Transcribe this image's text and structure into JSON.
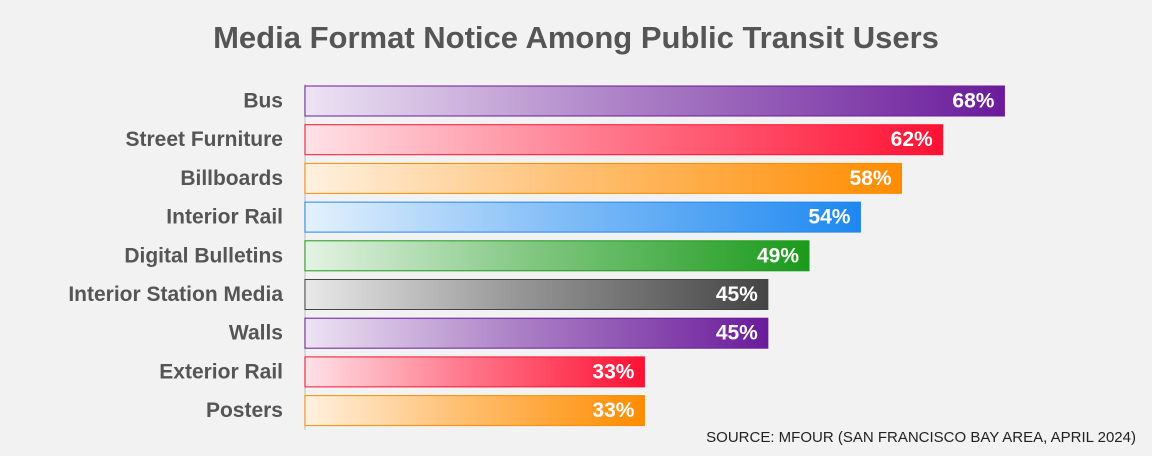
{
  "chart_data": {
    "type": "bar",
    "orientation": "horizontal",
    "title": "Media Format Notice Among Public Transit Users",
    "categories": [
      "Bus",
      "Street Furniture",
      "Billboards",
      "Interior Rail",
      "Digital Bulletins",
      "Interior Station Media",
      "Walls",
      "Exterior Rail",
      "Posters"
    ],
    "values": [
      68,
      62,
      58,
      54,
      49,
      45,
      45,
      33,
      33
    ],
    "value_labels": [
      "68%",
      "62%",
      "58%",
      "54%",
      "49%",
      "45%",
      "45%",
      "33%",
      "33%"
    ],
    "colors": [
      "#6a1b9a",
      "#ff1133",
      "#ff8c00",
      "#1e88f0",
      "#1a9a1a",
      "#444444",
      "#6a1b9a",
      "#ff1133",
      "#ff8c00"
    ],
    "xlim": [
      0,
      70
    ],
    "source": "SOURCE: MFOUR (SAN FRANCISCO BAY AREA, APRIL 2024)"
  }
}
